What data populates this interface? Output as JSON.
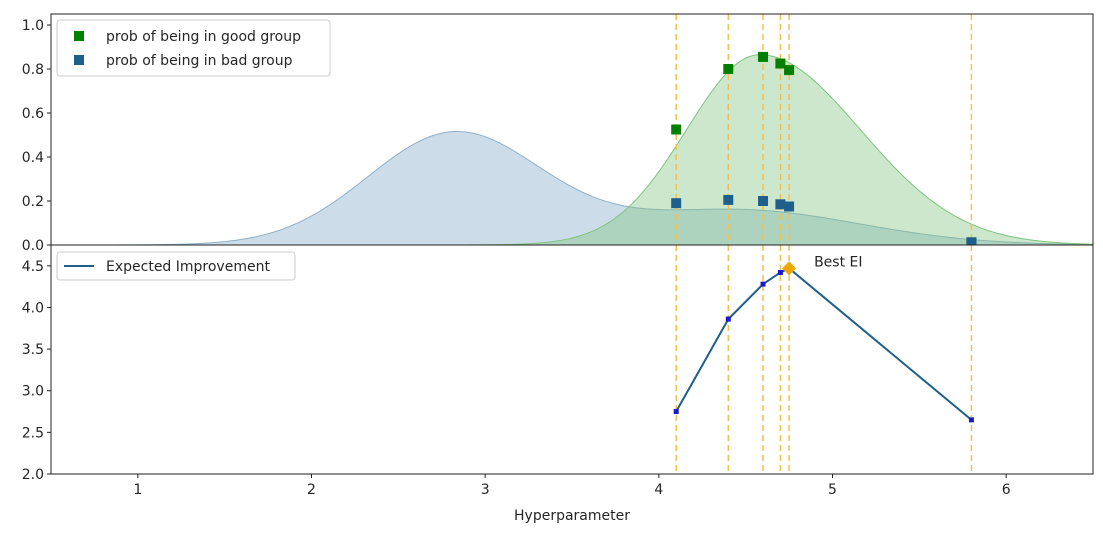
{
  "chart_data": [
    {
      "type": "area",
      "panel": "top",
      "xlim": [
        0.5,
        6.5
      ],
      "ylim": [
        0.0,
        1.05
      ],
      "yticks": [
        0.0,
        0.2,
        0.4,
        0.6,
        0.8,
        1.0
      ],
      "ytick_labels": [
        "0.0",
        "0.2",
        "0.4",
        "0.6",
        "0.8",
        "1.0"
      ],
      "legend_placement": "upper-left",
      "colors": {
        "good": "#008000",
        "bad": "#1f5f8b",
        "good_fill": "#7fc47f",
        "bad_fill": "#8fb2cc",
        "vline": "#f5c04a"
      },
      "series": [
        {
          "name": "prob of being in good group",
          "kind": "scatter",
          "color": "#008000",
          "x": [
            4.1,
            4.4,
            4.6,
            4.7,
            4.75,
            5.8
          ],
          "y": [
            0.525,
            0.8,
            0.855,
            0.825,
            0.795,
            0.012
          ]
        },
        {
          "name": "prob of being in bad group",
          "kind": "scatter",
          "color": "#1f5f8b",
          "x": [
            4.1,
            4.4,
            4.6,
            4.7,
            4.75,
            5.8
          ],
          "y": [
            0.19,
            0.205,
            0.2,
            0.185,
            0.175,
            0.012
          ]
        }
      ],
      "density_good": {
        "peak_x": 4.58,
        "peak_y": 0.865,
        "sigma_left": 0.42,
        "sigma_right": 0.58
      },
      "density_bad": [
        {
          "center": 2.82,
          "amp": 0.505,
          "sigma": 0.5
        },
        {
          "center": 4.45,
          "amp": 0.16,
          "sigma": 0.7
        }
      ],
      "vlines_x": [
        4.1,
        4.4,
        4.6,
        4.7,
        4.75,
        5.8
      ]
    },
    {
      "type": "line",
      "panel": "bottom",
      "xlim": [
        0.5,
        6.5
      ],
      "ylim": [
        2.0,
        4.75
      ],
      "yticks": [
        2.0,
        2.5,
        3.0,
        3.5,
        4.0,
        4.5
      ],
      "ytick_labels": [
        "2.0",
        "2.5",
        "3.0",
        "3.5",
        "4.0",
        "4.5"
      ],
      "xticks": [
        1,
        2,
        3,
        4,
        5,
        6
      ],
      "xtick_labels": [
        "1",
        "2",
        "3",
        "4",
        "5",
        "6"
      ],
      "xlabel": "Hyperparameter",
      "legend_placement": "upper-left",
      "colors": {
        "line": "#1f5f8b",
        "marker": "#1a1acc",
        "best": "#f0a800",
        "vline": "#f5c04a"
      },
      "series": [
        {
          "name": "Expected Improvement",
          "x": [
            4.1,
            4.4,
            4.6,
            4.7,
            4.75,
            5.8
          ],
          "y": [
            2.75,
            3.86,
            4.28,
            4.42,
            4.47,
            2.65
          ]
        }
      ],
      "best": {
        "x": 4.75,
        "y": 4.47,
        "label": "Best EI"
      },
      "vlines_x": [
        4.1,
        4.4,
        4.6,
        4.7,
        4.75,
        5.8
      ]
    }
  ]
}
